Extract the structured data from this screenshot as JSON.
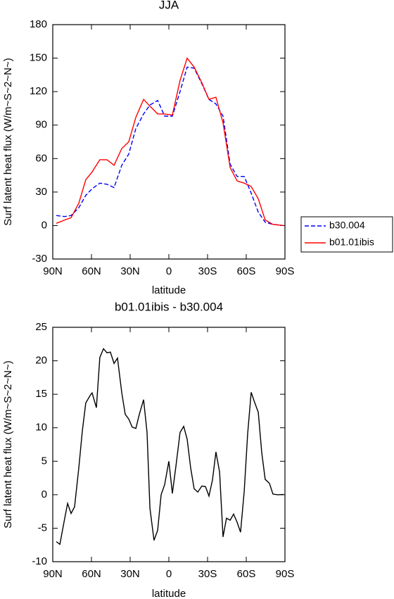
{
  "chart_data": [
    {
      "type": "line",
      "title": "JJA",
      "xlabel": "latitude",
      "ylabel": "Surf latent heat flux (W/m~S~2~N~)",
      "x": [
        87.3,
        80.7,
        75.8,
        69.8,
        64.4,
        59.5,
        53.5,
        48,
        42.5,
        36.5,
        31.1,
        25.6,
        19.6,
        14.7,
        8.7,
        3.3,
        -2.7,
        -8.7,
        -14.2,
        -19.6,
        -25.6,
        -31.1,
        -36.5,
        -42,
        -47.5,
        -52.9,
        -58.4,
        -63.8,
        -69.3,
        -74.7,
        -80.7,
        -88.9
      ],
      "series": [
        {
          "name": "b30.004",
          "color": "#0000ff",
          "dash": true,
          "values": [
            9,
            8,
            9,
            16,
            27,
            33,
            38,
            37,
            34,
            54,
            64,
            87,
            100,
            108,
            112,
            98,
            98,
            120,
            142,
            141,
            127,
            113,
            109,
            98,
            55,
            44,
            44,
            29,
            12,
            3,
            1,
            0
          ]
        },
        {
          "name": "b01.01ibis",
          "color": "#ff0000",
          "dash": false,
          "values": [
            2,
            5,
            7,
            20,
            41,
            48,
            59,
            59,
            54,
            69,
            75,
            97,
            113,
            107,
            100,
            100,
            99,
            130,
            150,
            142,
            128,
            113,
            115,
            92,
            52,
            40,
            38,
            35,
            24,
            5,
            1,
            0
          ]
        }
      ],
      "xlim": [
        90,
        -90
      ],
      "xticks": [
        {
          "value": 90,
          "label": "90N"
        },
        {
          "value": 60,
          "label": "60N"
        },
        {
          "value": 30,
          "label": "30N"
        },
        0,
        {
          "value": -30,
          "label": "30S"
        },
        {
          "value": -60,
          "label": "60S"
        },
        {
          "value": -90,
          "label": "90S"
        }
      ],
      "ylim": [
        -30,
        180
      ],
      "yticks": [
        -30,
        0,
        30,
        60,
        90,
        120,
        150,
        180
      ],
      "legend": "right"
    },
    {
      "type": "line",
      "title": "b01.01ibis - b30.004",
      "xlabel": "latitude",
      "ylabel": "Surf latent heat flux (W/m~S~2~N~)",
      "x": [
        87.3,
        84.5,
        80.7,
        78.5,
        75.8,
        73.1,
        69.8,
        67.1,
        64.4,
        61.1,
        59.5,
        56.2,
        53.5,
        50.7,
        48,
        45.3,
        42.5,
        39.8,
        36.5,
        33.8,
        31.1,
        28.4,
        25.6,
        22.9,
        19.6,
        16.9,
        14.7,
        11.5,
        8.7,
        6,
        3.3,
        0,
        -2.7,
        -5.5,
        -8.7,
        -11.5,
        -14.2,
        -16.9,
        -19.6,
        -22.4,
        -25.6,
        -28.4,
        -31.1,
        -33.8,
        -36.5,
        -39.3,
        -42,
        -44.7,
        -47.5,
        -50.2,
        -52.9,
        -55.6,
        -58.4,
        -61.1,
        -63.8,
        -66.5,
        -69.3,
        -72,
        -74.7,
        -78,
        -80.7,
        -84.5,
        -88.9
      ],
      "series": [
        {
          "color": "#000000",
          "dash": false,
          "values": [
            -7,
            -7.4,
            -3.5,
            -1.3,
            -2.8,
            -1.8,
            4,
            9.5,
            13.7,
            14.8,
            15.2,
            13,
            20.5,
            21.8,
            21.2,
            21.3,
            19.6,
            20.4,
            15.2,
            12,
            11.3,
            10.1,
            9.9,
            12,
            14.2,
            9.3,
            -2,
            -6.8,
            -5.3,
            0,
            1.5,
            5,
            0.2,
            4.3,
            9.3,
            10.2,
            8.3,
            4,
            0.9,
            0.4,
            1.3,
            1.2,
            -0.2,
            2.2,
            6.4,
            3.4,
            -6.3,
            -3.5,
            -3.8,
            -2.9,
            -4.1,
            -5.6,
            0.5,
            9.1,
            15.3,
            13.8,
            12.3,
            6.3,
            2.3,
            1.7,
            0.1,
            0,
            0.05
          ]
        }
      ],
      "xlim": [
        90,
        -90
      ],
      "xticks": [
        {
          "value": 90,
          "label": "90N"
        },
        {
          "value": 60,
          "label": "60N"
        },
        {
          "value": 30,
          "label": "30N"
        },
        0,
        {
          "value": -30,
          "label": "30S"
        },
        {
          "value": -60,
          "label": "60S"
        },
        {
          "value": -90,
          "label": "90S"
        }
      ],
      "ylim": [
        -10,
        25
      ],
      "yticks": [
        -10,
        -5,
        0,
        5,
        10,
        15,
        20,
        25
      ]
    }
  ]
}
